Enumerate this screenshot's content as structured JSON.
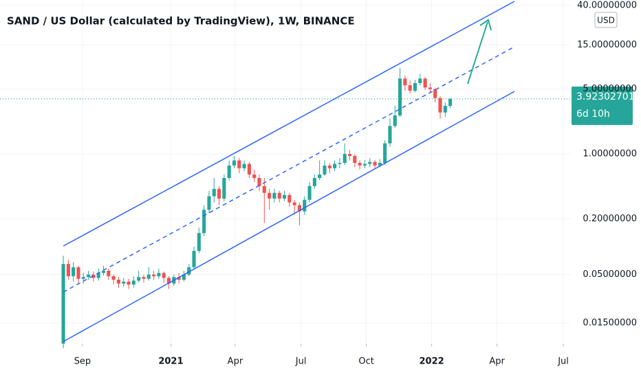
{
  "chart_data": {
    "type": "candlestick",
    "title": "SAND / US Dollar (calculated by TradingView), 1W, BINANCE",
    "currency": "USD",
    "last_price": 3.92302701,
    "countdown": "6d 10h",
    "open": [
      0.009,
      0.065,
      0.048,
      0.06,
      0.045,
      0.047,
      0.05,
      0.046,
      0.052,
      0.055,
      0.048,
      0.044,
      0.04,
      0.042,
      0.039,
      0.043,
      0.047,
      0.045,
      0.05,
      0.048,
      0.052,
      0.046,
      0.04,
      0.047,
      0.044,
      0.05,
      0.06,
      0.09,
      0.14,
      0.25,
      0.35,
      0.42,
      0.33,
      0.55,
      0.75,
      0.85,
      0.7,
      0.78,
      0.6,
      0.55,
      0.45,
      0.38,
      0.33,
      0.38,
      0.33,
      0.36,
      0.3,
      0.28,
      0.24,
      0.32,
      0.45,
      0.55,
      0.6,
      0.75,
      0.7,
      0.78,
      0.8,
      1.0,
      0.95,
      0.8,
      0.75,
      0.78,
      0.82,
      0.75,
      0.8,
      1.3,
      2.0,
      2.6,
      6.5,
      5.5,
      4.8,
      5.8,
      6.5,
      5.2,
      5.0,
      4.0,
      2.8,
      3.3
    ],
    "high": [
      0.08,
      0.072,
      0.068,
      0.062,
      0.052,
      0.055,
      0.054,
      0.058,
      0.062,
      0.058,
      0.05,
      0.047,
      0.046,
      0.045,
      0.048,
      0.055,
      0.05,
      0.06,
      0.055,
      0.058,
      0.054,
      0.048,
      0.05,
      0.052,
      0.055,
      0.065,
      0.1,
      0.16,
      0.28,
      0.4,
      0.55,
      0.45,
      0.6,
      0.85,
      0.95,
      0.9,
      0.85,
      0.82,
      0.68,
      0.6,
      0.55,
      0.42,
      0.42,
      0.4,
      0.4,
      0.38,
      0.32,
      0.3,
      0.35,
      0.5,
      0.6,
      0.85,
      0.85,
      0.8,
      0.85,
      0.9,
      1.3,
      1.1,
      1.0,
      0.85,
      0.86,
      0.9,
      0.86,
      0.88,
      1.4,
      2.4,
      3.3,
      8.4,
      7.0,
      6.2,
      6.3,
      7.3,
      6.7,
      5.8,
      5.1,
      4.2,
      3.6,
      4.0
    ],
    "low": [
      0.008,
      0.044,
      0.042,
      0.04,
      0.04,
      0.044,
      0.042,
      0.043,
      0.049,
      0.044,
      0.039,
      0.036,
      0.037,
      0.035,
      0.036,
      0.041,
      0.041,
      0.043,
      0.044,
      0.045,
      0.041,
      0.035,
      0.038,
      0.04,
      0.042,
      0.048,
      0.058,
      0.085,
      0.13,
      0.23,
      0.3,
      0.28,
      0.31,
      0.52,
      0.7,
      0.62,
      0.65,
      0.55,
      0.5,
      0.4,
      0.18,
      0.25,
      0.3,
      0.3,
      0.31,
      0.27,
      0.22,
      0.17,
      0.22,
      0.3,
      0.42,
      0.52,
      0.58,
      0.62,
      0.65,
      0.7,
      0.76,
      0.85,
      0.72,
      0.68,
      0.7,
      0.72,
      0.7,
      0.72,
      0.76,
      1.2,
      1.9,
      2.5,
      4.8,
      4.5,
      4.6,
      5.5,
      4.9,
      4.6,
      3.6,
      2.4,
      2.5,
      3.1
    ],
    "close": [
      0.065,
      0.048,
      0.06,
      0.045,
      0.047,
      0.05,
      0.046,
      0.052,
      0.055,
      0.048,
      0.044,
      0.04,
      0.042,
      0.039,
      0.043,
      0.047,
      0.045,
      0.05,
      0.048,
      0.052,
      0.046,
      0.04,
      0.047,
      0.044,
      0.05,
      0.06,
      0.09,
      0.14,
      0.25,
      0.35,
      0.42,
      0.33,
      0.55,
      0.75,
      0.85,
      0.7,
      0.78,
      0.6,
      0.55,
      0.45,
      0.38,
      0.33,
      0.38,
      0.33,
      0.36,
      0.3,
      0.28,
      0.24,
      0.32,
      0.45,
      0.55,
      0.6,
      0.75,
      0.7,
      0.78,
      0.8,
      1.0,
      0.95,
      0.8,
      0.75,
      0.78,
      0.82,
      0.75,
      0.8,
      1.3,
      2.0,
      2.6,
      6.5,
      5.5,
      4.8,
      5.8,
      6.5,
      5.2,
      5.0,
      4.0,
      2.8,
      3.3,
      3.923
    ],
    "up_color": "#26a69a",
    "down_color": "#ef5350",
    "log_scale": true,
    "grid": true,
    "ylim": [
      0.009,
      45.7
    ],
    "yticks": [
      {
        "value": 40,
        "label": "40.00000000"
      },
      {
        "value": 15,
        "label": "15.00000000"
      },
      {
        "value": 5,
        "label": "5.00000000"
      },
      {
        "value": 1,
        "label": "1.00000000"
      },
      {
        "value": 0.2,
        "label": "0.20000000"
      },
      {
        "value": 0.05,
        "label": "0.05000000"
      },
      {
        "value": 0.015,
        "label": "0.01500000"
      }
    ],
    "xlim": [
      -12.6,
      101
    ],
    "xticks": [
      {
        "value": 3.8,
        "label": "Sep"
      },
      {
        "value": 21.4,
        "label": "2021"
      },
      {
        "value": 34.2,
        "label": "Apr"
      },
      {
        "value": 47.3,
        "label": "Jul"
      },
      {
        "value": 60.3,
        "label": "Oct"
      },
      {
        "value": 73.3,
        "label": "2022"
      },
      {
        "value": 86.3,
        "label": "Apr"
      },
      {
        "value": 99.5,
        "label": "Jul"
      }
    ]
  }
}
